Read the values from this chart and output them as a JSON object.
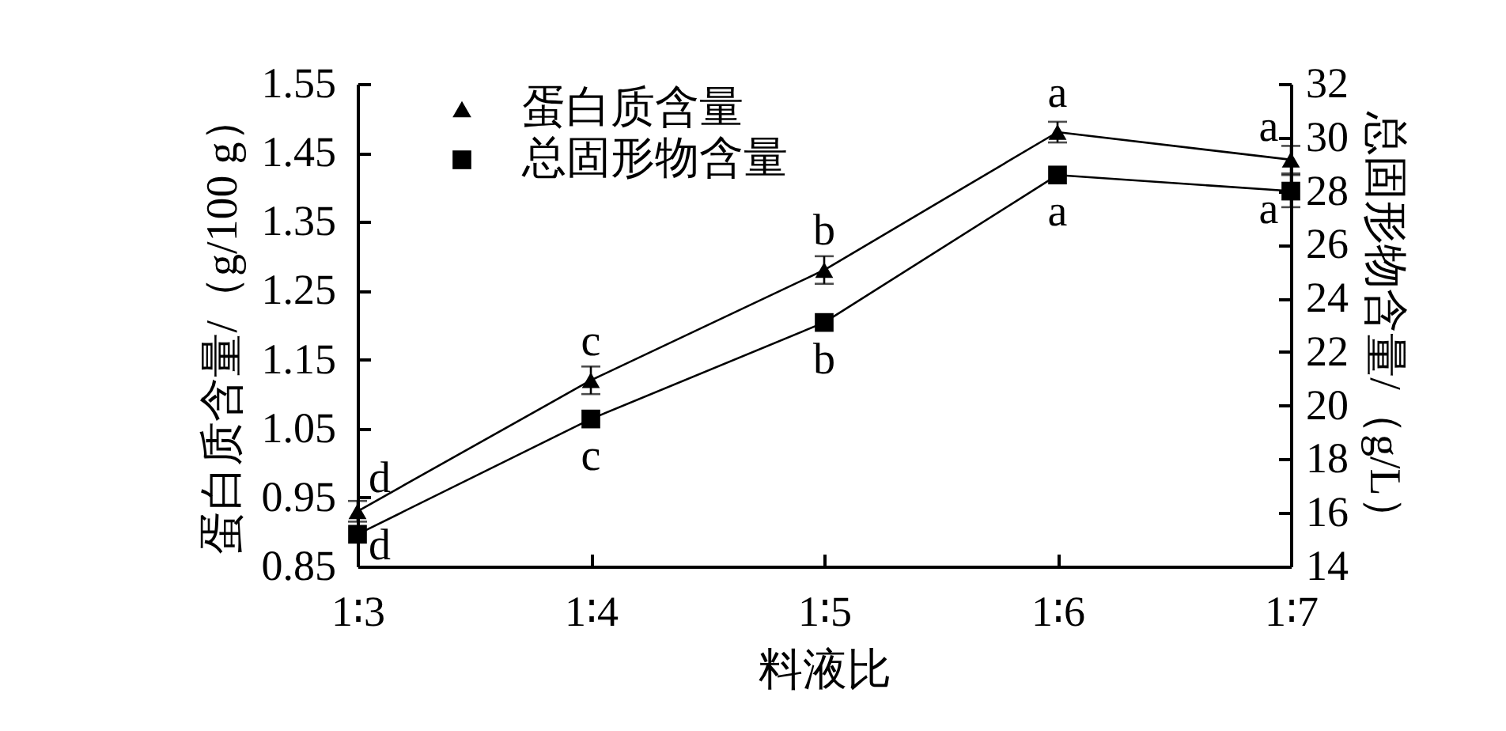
{
  "chart_data": {
    "type": "line",
    "categories": [
      "1∶3",
      "1∶4",
      "1∶5",
      "1∶6",
      "1∶7"
    ],
    "xlabel": "料液比",
    "ylabel": "蛋白质含量/（g/100 g）",
    "y2label": "总固形物含量/（g/L）",
    "ylim": [
      0.85,
      1.55
    ],
    "yticks": [
      0.85,
      0.95,
      1.05,
      1.15,
      1.25,
      1.35,
      1.45,
      1.55
    ],
    "y2lim": [
      14,
      32
    ],
    "y2ticks": [
      14,
      16,
      18,
      20,
      22,
      24,
      26,
      28,
      30,
      32
    ],
    "legend": "top left",
    "line_style": "solid",
    "series": [
      {
        "name": "蛋白质含量",
        "color": "#000000",
        "marker": "triangle",
        "values": [
          0.93,
          1.12,
          1.28,
          1.48,
          1.44
        ],
        "errors": [
          0.015,
          0.02,
          0.02,
          0.015,
          0.02
        ],
        "value_labels": [
          "d",
          "c",
          "b",
          "a",
          "a"
        ]
      },
      {
        "name": "总固形物含量",
        "color": "#000000",
        "marker": "square",
        "axis": "y2",
        "values": [
          15.2,
          19.5,
          23.1,
          28.6,
          28.0
        ],
        "errors": [
          null,
          null,
          null,
          null,
          0.6
        ],
        "value_labels": [
          "d",
          "c",
          "b",
          "a",
          "a"
        ]
      }
    ]
  }
}
